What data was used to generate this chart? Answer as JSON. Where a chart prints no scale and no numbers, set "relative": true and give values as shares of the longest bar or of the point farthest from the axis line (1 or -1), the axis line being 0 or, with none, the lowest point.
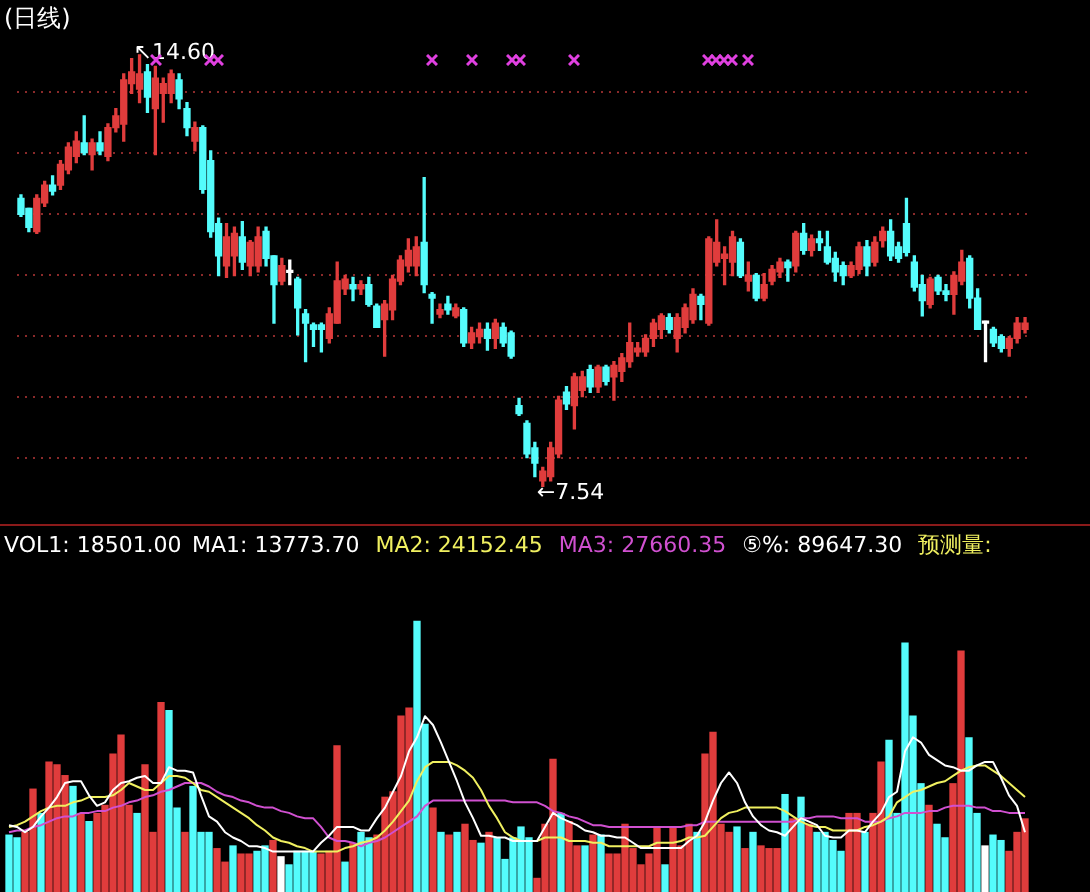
{
  "chart_data": [
    {
      "type": "candlestick",
      "title": "(日线)",
      "grid": "y",
      "categories": [
        null,
        null,
        null,
        null,
        null,
        null,
        null,
        null,
        null,
        null,
        null,
        null,
        null,
        null,
        null,
        null,
        null,
        null,
        null,
        null,
        null,
        null,
        null,
        null,
        null,
        null,
        null,
        null,
        null,
        null,
        null,
        null,
        null,
        null,
        null,
        null,
        null,
        null,
        null,
        null,
        null,
        null,
        null,
        null,
        null,
        null,
        null,
        null,
        null,
        null,
        null,
        null,
        null,
        null,
        null,
        null,
        null,
        null,
        null,
        null,
        null,
        null,
        null,
        null,
        null,
        null,
        null,
        null,
        null,
        null,
        null,
        null,
        null,
        null,
        null,
        null,
        null,
        null,
        null,
        null,
        null,
        null,
        null,
        null,
        null,
        null,
        null,
        null,
        null,
        null,
        null,
        null,
        null,
        null,
        null,
        null,
        null,
        null,
        null,
        null,
        null,
        null,
        null,
        null,
        null,
        null,
        null,
        null,
        null,
        null,
        null,
        null,
        null,
        null,
        null,
        null,
        null,
        null,
        null,
        null,
        null,
        null,
        null,
        null,
        null,
        null,
        null,
        null
      ],
      "ohlc": [
        [
          12.25,
          12.31,
          11.96,
          11.99
        ],
        [
          12.09,
          12.09,
          11.71,
          11.78
        ],
        [
          11.71,
          12.31,
          11.68,
          12.25
        ],
        [
          12.18,
          12.53,
          12.12,
          12.47
        ],
        [
          12.47,
          12.62,
          12.31,
          12.37
        ],
        [
          12.47,
          12.87,
          12.4,
          12.81
        ],
        [
          12.72,
          13.16,
          12.66,
          13.09
        ],
        [
          12.94,
          13.34,
          12.84,
          13.19
        ],
        [
          13.16,
          13.6,
          12.97,
          13.0
        ],
        [
          12.97,
          13.22,
          12.72,
          13.16
        ],
        [
          13.16,
          13.34,
          12.97,
          13.03
        ],
        [
          12.94,
          13.47,
          12.87,
          13.41
        ],
        [
          13.41,
          13.72,
          13.34,
          13.6
        ],
        [
          13.47,
          14.29,
          13.19,
          14.19
        ],
        [
          14.13,
          14.54,
          13.97,
          14.32
        ],
        [
          14.04,
          14.6,
          13.82,
          14.29
        ],
        [
          14.32,
          14.44,
          13.66,
          13.91
        ],
        [
          13.72,
          14.41,
          12.97,
          14.22
        ],
        [
          13.97,
          14.22,
          13.5,
          14.13
        ],
        [
          13.97,
          14.35,
          13.82,
          14.29
        ],
        [
          14.19,
          14.29,
          13.72,
          13.88
        ],
        [
          13.72,
          13.82,
          13.28,
          13.41
        ],
        [
          13.19,
          13.5,
          13.03,
          13.41
        ],
        [
          13.41,
          13.44,
          12.34,
          12.4
        ],
        [
          12.87,
          13.03,
          11.62,
          11.71
        ],
        [
          11.84,
          11.93,
          10.99,
          11.31
        ],
        [
          11.15,
          11.84,
          10.96,
          11.62
        ],
        [
          11.31,
          11.78,
          10.99,
          11.68
        ],
        [
          11.62,
          11.87,
          11.09,
          11.21
        ],
        [
          11.15,
          11.56,
          10.99,
          11.53
        ],
        [
          11.15,
          11.78,
          11.05,
          11.62
        ],
        [
          11.71,
          11.78,
          11.15,
          11.27
        ],
        [
          11.31,
          11.31,
          10.21,
          10.84
        ],
        [
          10.9,
          11.27,
          10.84,
          11.15
        ],
        [
          11.04,
          11.24,
          10.84,
          11.04
        ],
        [
          10.93,
          10.96,
          10.02,
          10.46
        ],
        [
          10.36,
          10.43,
          9.58,
          10.21
        ],
        [
          10.18,
          10.21,
          9.83,
          10.11
        ],
        [
          10.18,
          10.21,
          9.74,
          10.11
        ],
        [
          9.96,
          10.46,
          9.89,
          10.36
        ],
        [
          10.21,
          11.21,
          10.21,
          10.9
        ],
        [
          10.77,
          10.99,
          10.68,
          10.93
        ],
        [
          10.84,
          10.96,
          10.58,
          10.77
        ],
        [
          10.77,
          10.9,
          10.68,
          10.84
        ],
        [
          10.84,
          10.96,
          10.49,
          10.52
        ],
        [
          10.49,
          10.52,
          10.14,
          10.14
        ],
        [
          10.27,
          10.58,
          9.67,
          10.52
        ],
        [
          10.43,
          10.99,
          10.27,
          10.93
        ],
        [
          10.9,
          11.31,
          10.84,
          11.24
        ],
        [
          11.15,
          11.59,
          11.05,
          11.4
        ],
        [
          11.15,
          11.62,
          10.99,
          11.46
        ],
        [
          11.53,
          12.59,
          10.71,
          10.84
        ],
        [
          10.68,
          10.71,
          10.21,
          10.62
        ],
        [
          10.36,
          10.52,
          10.3,
          10.43
        ],
        [
          10.52,
          10.65,
          10.36,
          10.43
        ],
        [
          10.33,
          10.52,
          10.3,
          10.46
        ],
        [
          10.43,
          10.46,
          9.83,
          9.89
        ],
        [
          9.89,
          10.14,
          9.8,
          10.05
        ],
        [
          9.99,
          10.21,
          9.89,
          10.11
        ],
        [
          10.11,
          10.21,
          9.77,
          9.96
        ],
        [
          9.96,
          10.27,
          9.8,
          10.21
        ],
        [
          10.14,
          10.21,
          9.83,
          9.89
        ],
        [
          10.05,
          10.08,
          9.64,
          9.67
        ],
        [
          8.86,
          8.98,
          8.7,
          8.73
        ],
        [
          8.57,
          8.61,
          8.01,
          8.07
        ],
        [
          8.17,
          8.26,
          7.7,
          7.92
        ],
        [
          7.63,
          7.85,
          7.54,
          7.79
        ],
        [
          7.7,
          8.26,
          7.63,
          8.17
        ],
        [
          8.07,
          9.01,
          8.01,
          8.95
        ],
        [
          9.08,
          9.17,
          8.8,
          8.89
        ],
        [
          8.86,
          9.39,
          8.48,
          9.33
        ],
        [
          9.11,
          9.42,
          9.01,
          9.33
        ],
        [
          9.45,
          9.52,
          9.08,
          9.17
        ],
        [
          9.17,
          9.52,
          9.08,
          9.49
        ],
        [
          9.49,
          9.52,
          9.2,
          9.26
        ],
        [
          9.33,
          9.58,
          8.95,
          9.52
        ],
        [
          9.42,
          9.71,
          9.26,
          9.64
        ],
        [
          9.58,
          10.21,
          9.49,
          9.89
        ],
        [
          9.74,
          9.89,
          9.67,
          9.8
        ],
        [
          9.74,
          10.02,
          9.67,
          9.96
        ],
        [
          9.96,
          10.27,
          9.83,
          10.21
        ],
        [
          10.11,
          10.36,
          9.96,
          10.33
        ],
        [
          10.3,
          10.36,
          10.05,
          10.11
        ],
        [
          9.96,
          10.36,
          9.74,
          10.3
        ],
        [
          10.14,
          10.52,
          10.05,
          10.46
        ],
        [
          10.27,
          10.77,
          10.21,
          10.68
        ],
        [
          10.65,
          10.68,
          10.27,
          10.52
        ],
        [
          10.21,
          11.62,
          10.18,
          11.59
        ],
        [
          11.21,
          11.9,
          11.15,
          11.53
        ],
        [
          11.27,
          11.46,
          10.84,
          11.34
        ],
        [
          11.21,
          11.71,
          10.99,
          11.62
        ],
        [
          11.53,
          11.59,
          10.96,
          10.99
        ],
        [
          10.9,
          11.21,
          10.74,
          10.99
        ],
        [
          10.99,
          11.02,
          10.58,
          10.62
        ],
        [
          10.62,
          11.02,
          10.58,
          10.84
        ],
        [
          10.9,
          11.15,
          10.84,
          11.09
        ],
        [
          11.05,
          11.27,
          10.96,
          11.21
        ],
        [
          11.21,
          11.24,
          10.9,
          11.12
        ],
        [
          11.15,
          11.71,
          11.05,
          11.68
        ],
        [
          11.68,
          11.84,
          11.34,
          11.4
        ],
        [
          11.4,
          11.65,
          11.31,
          11.59
        ],
        [
          11.59,
          11.71,
          11.4,
          11.53
        ],
        [
          11.46,
          11.71,
          11.18,
          11.21
        ],
        [
          11.27,
          11.37,
          10.9,
          11.05
        ],
        [
          11.15,
          11.21,
          10.84,
          10.99
        ],
        [
          10.99,
          11.21,
          10.96,
          11.15
        ],
        [
          11.09,
          11.53,
          11.02,
          11.46
        ],
        [
          11.46,
          11.56,
          10.99,
          11.15
        ],
        [
          11.21,
          11.62,
          11.15,
          11.53
        ],
        [
          11.56,
          11.78,
          11.46,
          11.71
        ],
        [
          11.71,
          11.9,
          11.24,
          11.31
        ],
        [
          11.46,
          11.53,
          11.21,
          11.27
        ],
        [
          11.84,
          12.25,
          11.31,
          11.37
        ],
        [
          11.21,
          11.31,
          10.74,
          10.8
        ],
        [
          10.84,
          10.99,
          10.33,
          10.58
        ],
        [
          10.52,
          10.96,
          10.46,
          10.93
        ],
        [
          10.96,
          10.99,
          10.68,
          10.74
        ],
        [
          10.74,
          10.84,
          10.58,
          10.68
        ],
        [
          10.68,
          11.05,
          10.36,
          10.99
        ],
        [
          10.9,
          11.4,
          10.84,
          11.21
        ],
        [
          11.27,
          11.31,
          10.46,
          10.62
        ],
        [
          10.62,
          10.77,
          10.11,
          10.11
        ],
        [
          10.21,
          10.24,
          9.58,
          10.21
        ],
        [
          10.11,
          10.14,
          9.83,
          9.89
        ],
        [
          9.99,
          10.02,
          9.74,
          9.8
        ],
        [
          9.8,
          9.99,
          9.67,
          9.96
        ],
        [
          9.96,
          10.3,
          9.89,
          10.21
        ],
        [
          10.11,
          10.3,
          10.05,
          10.21
        ]
      ],
      "colors": [
        "#54fcfc",
        "#54fcfc",
        "#e03c3c",
        "#e03c3c",
        "#54fcfc",
        "#e03c3c",
        "#e03c3c",
        "#e03c3c",
        "#54fcfc",
        "#e03c3c",
        "#54fcfc",
        "#e03c3c",
        "#e03c3c",
        "#e03c3c",
        "#e03c3c",
        "#e03c3c",
        "#54fcfc",
        "#e03c3c",
        "#e03c3c",
        "#e03c3c",
        "#54fcfc",
        "#54fcfc",
        "#e03c3c",
        "#54fcfc",
        "#54fcfc",
        "#54fcfc",
        "#e03c3c",
        "#e03c3c",
        "#54fcfc",
        "#e03c3c",
        "#e03c3c",
        "#54fcfc",
        "#54fcfc",
        "#e03c3c",
        "#ffffff",
        "#54fcfc",
        "#54fcfc",
        "#54fcfc",
        "#54fcfc",
        "#e03c3c",
        "#e03c3c",
        "#e03c3c",
        "#54fcfc",
        "#e03c3c",
        "#54fcfc",
        "#54fcfc",
        "#e03c3c",
        "#e03c3c",
        "#e03c3c",
        "#e03c3c",
        "#e03c3c",
        "#54fcfc",
        "#54fcfc",
        "#e03c3c",
        "#54fcfc",
        "#e03c3c",
        "#54fcfc",
        "#e03c3c",
        "#e03c3c",
        "#54fcfc",
        "#e03c3c",
        "#54fcfc",
        "#54fcfc",
        "#54fcfc",
        "#54fcfc",
        "#54fcfc",
        "#e03c3c",
        "#e03c3c",
        "#e03c3c",
        "#54fcfc",
        "#e03c3c",
        "#e03c3c",
        "#54fcfc",
        "#e03c3c",
        "#54fcfc",
        "#e03c3c",
        "#e03c3c",
        "#e03c3c",
        "#e03c3c",
        "#e03c3c",
        "#e03c3c",
        "#e03c3c",
        "#54fcfc",
        "#e03c3c",
        "#e03c3c",
        "#e03c3c",
        "#54fcfc",
        "#e03c3c",
        "#e03c3c",
        "#e03c3c",
        "#e03c3c",
        "#54fcfc",
        "#e03c3c",
        "#54fcfc",
        "#e03c3c",
        "#e03c3c",
        "#e03c3c",
        "#54fcfc",
        "#e03c3c",
        "#54fcfc",
        "#e03c3c",
        "#54fcfc",
        "#54fcfc",
        "#54fcfc",
        "#54fcfc",
        "#e03c3c",
        "#e03c3c",
        "#54fcfc",
        "#e03c3c",
        "#e03c3c",
        "#54fcfc",
        "#54fcfc",
        "#54fcfc",
        "#54fcfc",
        "#54fcfc",
        "#e03c3c",
        "#54fcfc",
        "#54fcfc",
        "#e03c3c",
        "#e03c3c",
        "#54fcfc",
        "#54fcfc",
        "#ffffff",
        "#54fcfc",
        "#54fcfc",
        "#e03c3c",
        "#e03c3c",
        "#e03c3c"
      ],
      "yticks": [
        {
          "value": 8,
          "label": null
        },
        {
          "value": 9,
          "label": null
        },
        {
          "value": 10,
          "label": null
        },
        {
          "value": 11,
          "label": null
        },
        {
          "value": 12,
          "label": null
        },
        {
          "value": 13,
          "label": null
        },
        {
          "value": 14,
          "label": null
        }
      ],
      "annotations": [
        "↖14.60",
        "←7.54"
      ]
    },
    {
      "type": "bar",
      "relative": true,
      "categories": [
        null,
        null,
        null,
        null,
        null,
        null,
        null,
        null,
        null,
        null,
        null,
        null,
        null,
        null,
        null,
        null,
        null,
        null,
        null,
        null,
        null,
        null,
        null,
        null,
        null,
        null,
        null,
        null,
        null,
        null,
        null,
        null,
        null,
        null,
        null,
        null,
        null,
        null,
        null,
        null,
        null,
        null,
        null,
        null,
        null,
        null,
        null,
        null,
        null,
        null,
        null,
        null,
        null,
        null,
        null,
        null,
        null,
        null,
        null,
        null,
        null,
        null,
        null,
        null,
        null,
        null,
        null,
        null,
        null,
        null,
        null,
        null,
        null,
        null,
        null,
        null,
        null,
        null,
        null,
        null,
        null,
        null,
        null,
        null,
        null,
        null,
        null,
        null,
        null,
        null,
        null,
        null,
        null,
        null,
        null,
        null,
        null,
        null,
        null,
        null,
        null,
        null,
        null,
        null,
        null,
        null,
        null,
        null,
        null,
        null,
        null,
        null,
        null,
        null,
        null,
        null,
        null,
        null,
        null,
        null,
        null,
        null,
        null,
        null,
        null,
        null,
        null,
        null
      ],
      "series": [
        {
          "name": "VOL1: 18501.00",
          "colors": [
            "#54fcfc",
            "#54fcfc",
            "#e03c3c",
            "#e03c3c",
            "#54fcfc",
            "#e03c3c",
            "#e03c3c",
            "#e03c3c",
            "#54fcfc",
            "#e03c3c",
            "#54fcfc",
            "#e03c3c",
            "#e03c3c",
            "#e03c3c",
            "#e03c3c",
            "#e03c3c",
            "#54fcfc",
            "#e03c3c",
            "#e03c3c",
            "#e03c3c",
            "#54fcfc",
            "#54fcfc",
            "#e03c3c",
            "#54fcfc",
            "#54fcfc",
            "#54fcfc",
            "#e03c3c",
            "#e03c3c",
            "#54fcfc",
            "#e03c3c",
            "#e03c3c",
            "#54fcfc",
            "#54fcfc",
            "#e03c3c",
            "#ffffff",
            "#54fcfc",
            "#54fcfc",
            "#54fcfc",
            "#54fcfc",
            "#e03c3c",
            "#e03c3c",
            "#e03c3c",
            "#54fcfc",
            "#e03c3c",
            "#54fcfc",
            "#54fcfc",
            "#e03c3c",
            "#e03c3c",
            "#e03c3c",
            "#e03c3c",
            "#e03c3c",
            "#54fcfc",
            "#54fcfc",
            "#e03c3c",
            "#54fcfc",
            "#e03c3c",
            "#54fcfc",
            "#e03c3c",
            "#e03c3c",
            "#54fcfc",
            "#e03c3c",
            "#54fcfc",
            "#54fcfc",
            "#54fcfc",
            "#54fcfc",
            "#54fcfc",
            "#e03c3c",
            "#e03c3c",
            "#e03c3c",
            "#54fcfc",
            "#e03c3c",
            "#e03c3c",
            "#54fcfc",
            "#e03c3c",
            "#54fcfc",
            "#e03c3c",
            "#e03c3c",
            "#e03c3c",
            "#e03c3c",
            "#e03c3c",
            "#e03c3c",
            "#e03c3c",
            "#54fcfc",
            "#e03c3c",
            "#e03c3c",
            "#e03c3c",
            "#54fcfc",
            "#e03c3c",
            "#e03c3c",
            "#e03c3c",
            "#e03c3c",
            "#54fcfc",
            "#e03c3c",
            "#54fcfc",
            "#e03c3c",
            "#e03c3c",
            "#e03c3c",
            "#54fcfc",
            "#e03c3c",
            "#54fcfc",
            "#e03c3c",
            "#54fcfc",
            "#54fcfc",
            "#54fcfc",
            "#54fcfc",
            "#e03c3c",
            "#e03c3c",
            "#54fcfc",
            "#e03c3c",
            "#e03c3c",
            "#54fcfc",
            "#54fcfc",
            "#54fcfc",
            "#54fcfc",
            "#54fcfc",
            "#e03c3c",
            "#54fcfc",
            "#54fcfc",
            "#e03c3c",
            "#e03c3c",
            "#54fcfc",
            "#54fcfc",
            "#ffffff",
            "#54fcfc",
            "#54fcfc",
            "#e03c3c",
            "#e03c3c",
            "#e03c3c"
          ],
          "values": [
            0.21,
            0.2,
            0.22,
            0.38,
            0.29,
            0.48,
            0.47,
            0.43,
            0.39,
            0.29,
            0.26,
            0.29,
            0.32,
            0.51,
            0.58,
            0.32,
            0.29,
            0.47,
            0.22,
            0.7,
            0.67,
            0.31,
            0.22,
            0.39,
            0.22,
            0.22,
            0.16,
            0.11,
            0.17,
            0.14,
            0.14,
            0.15,
            0.17,
            0.19,
            0.13,
            0.1,
            0.15,
            0.15,
            0.15,
            0.14,
            0.15,
            0.54,
            0.11,
            0.18,
            0.22,
            0.2,
            0.21,
            0.35,
            0.37,
            0.65,
            0.68,
            1.0,
            0.62,
            0.31,
            0.22,
            0.21,
            0.22,
            0.25,
            0.19,
            0.18,
            0.22,
            0.2,
            0.12,
            0.2,
            0.24,
            0.2,
            0.05,
            0.25,
            0.49,
            0.29,
            0.26,
            0.17,
            0.17,
            0.21,
            0.21,
            0.14,
            0.14,
            0.25,
            0.16,
            0.1,
            0.14,
            0.24,
            0.1,
            0.24,
            0.17,
            0.25,
            0.22,
            0.51,
            0.59,
            0.25,
            0.22,
            0.24,
            0.16,
            0.22,
            0.17,
            0.16,
            0.16,
            0.36,
            0.27,
            0.35,
            0.25,
            0.22,
            0.22,
            0.19,
            0.15,
            0.29,
            0.29,
            0.22,
            0.29,
            0.48,
            0.56,
            0.29,
            0.92,
            0.65,
            0.4,
            0.32,
            0.25,
            0.2,
            0.4,
            0.89,
            0.57,
            0.29,
            0.17,
            0.21,
            0.19,
            0.15,
            0.22,
            0.27
          ]
        }
      ]
    },
    {
      "type": "line",
      "relative": true,
      "categories": [
        null,
        null,
        null,
        null,
        null,
        null,
        null,
        null,
        null,
        null,
        null,
        null,
        null,
        null,
        null,
        null,
        null,
        null,
        null,
        null,
        null,
        null,
        null,
        null,
        null,
        null,
        null,
        null,
        null,
        null,
        null,
        null,
        null,
        null,
        null,
        null,
        null,
        null,
        null,
        null,
        null,
        null,
        null,
        null,
        null,
        null,
        null,
        null,
        null,
        null,
        null,
        null,
        null,
        null,
        null,
        null,
        null,
        null,
        null,
        null,
        null,
        null,
        null,
        null,
        null,
        null,
        null,
        null,
        null,
        null,
        null,
        null,
        null,
        null,
        null,
        null,
        null,
        null,
        null,
        null,
        null,
        null,
        null,
        null,
        null,
        null,
        null,
        null,
        null,
        null,
        null,
        null,
        null,
        null,
        null,
        null,
        null,
        null,
        null,
        null,
        null,
        null,
        null,
        null,
        null,
        null,
        null,
        null,
        null,
        null,
        null,
        null,
        null,
        null,
        null,
        null,
        null,
        null,
        null,
        null,
        null,
        null,
        null,
        null,
        null,
        null,
        null,
        null
      ],
      "series": [
        {
          "name": "MA1: 13773.70",
          "color": "#ffffff",
          "values": [
            0.38,
            0.37,
            0.34,
            0.37,
            0.43,
            0.48,
            0.54,
            0.62,
            0.63,
            0.63,
            0.55,
            0.49,
            0.51,
            0.58,
            0.62,
            0.63,
            0.65,
            0.66,
            0.62,
            0.62,
            0.71,
            0.69,
            0.69,
            0.68,
            0.55,
            0.43,
            0.4,
            0.34,
            0.31,
            0.29,
            0.26,
            0.26,
            0.25,
            0.23,
            0.23,
            0.23,
            0.23,
            0.23,
            0.23,
            0.28,
            0.32,
            0.37,
            0.37,
            0.37,
            0.35,
            0.35,
            0.42,
            0.48,
            0.57,
            0.66,
            0.8,
            0.88,
            1.0,
            0.95,
            0.85,
            0.74,
            0.63,
            0.51,
            0.42,
            0.32,
            0.32,
            0.31,
            0.31,
            0.29,
            0.29,
            0.29,
            0.29,
            0.37,
            0.45,
            0.42,
            0.4,
            0.38,
            0.35,
            0.34,
            0.32,
            0.32,
            0.31,
            0.31,
            0.28,
            0.25,
            0.25,
            0.25,
            0.25,
            0.25,
            0.25,
            0.29,
            0.32,
            0.4,
            0.52,
            0.62,
            0.68,
            0.62,
            0.51,
            0.43,
            0.38,
            0.35,
            0.34,
            0.32,
            0.37,
            0.42,
            0.4,
            0.38,
            0.32,
            0.31,
            0.31,
            0.35,
            0.35,
            0.34,
            0.4,
            0.45,
            0.54,
            0.57,
            0.8,
            0.88,
            0.85,
            0.78,
            0.75,
            0.72,
            0.71,
            0.69,
            0.69,
            0.72,
            0.74,
            0.74,
            0.65,
            0.55,
            0.49,
            0.34
          ]
        },
        {
          "name": "MA2: 24152.45",
          "color": "#f0f060",
          "values": [
            0.37,
            0.38,
            0.4,
            0.43,
            0.46,
            0.48,
            0.49,
            0.49,
            0.51,
            0.52,
            0.54,
            0.54,
            0.54,
            0.55,
            0.58,
            0.62,
            0.6,
            0.58,
            0.58,
            0.62,
            0.66,
            0.66,
            0.65,
            0.62,
            0.58,
            0.57,
            0.54,
            0.51,
            0.48,
            0.45,
            0.42,
            0.38,
            0.35,
            0.31,
            0.29,
            0.28,
            0.26,
            0.25,
            0.23,
            0.23,
            0.23,
            0.23,
            0.25,
            0.26,
            0.28,
            0.29,
            0.31,
            0.35,
            0.4,
            0.46,
            0.52,
            0.63,
            0.71,
            0.74,
            0.74,
            0.74,
            0.72,
            0.69,
            0.65,
            0.58,
            0.49,
            0.42,
            0.34,
            0.31,
            0.29,
            0.29,
            0.29,
            0.31,
            0.31,
            0.31,
            0.29,
            0.29,
            0.29,
            0.28,
            0.28,
            0.26,
            0.26,
            0.26,
            0.26,
            0.26,
            0.26,
            0.28,
            0.28,
            0.28,
            0.29,
            0.31,
            0.31,
            0.32,
            0.37,
            0.42,
            0.45,
            0.46,
            0.48,
            0.48,
            0.48,
            0.48,
            0.48,
            0.46,
            0.43,
            0.4,
            0.38,
            0.37,
            0.37,
            0.35,
            0.35,
            0.35,
            0.35,
            0.37,
            0.38,
            0.4,
            0.43,
            0.51,
            0.54,
            0.57,
            0.58,
            0.6,
            0.62,
            0.63,
            0.66,
            0.69,
            0.71,
            0.72,
            0.72,
            0.69,
            0.66,
            0.62,
            0.58,
            0.54
          ]
        },
        {
          "name": "MA3: 27660.35",
          "color": "#d050d0",
          "values": [
            0.34,
            0.35,
            0.35,
            0.37,
            0.38,
            0.4,
            0.42,
            0.43,
            0.43,
            0.45,
            0.45,
            0.46,
            0.46,
            0.48,
            0.49,
            0.51,
            0.52,
            0.54,
            0.55,
            0.57,
            0.58,
            0.6,
            0.62,
            0.62,
            0.62,
            0.6,
            0.57,
            0.55,
            0.54,
            0.52,
            0.51,
            0.49,
            0.48,
            0.48,
            0.46,
            0.45,
            0.43,
            0.42,
            0.42,
            0.37,
            0.31,
            0.29,
            0.29,
            0.28,
            0.26,
            0.28,
            0.29,
            0.31,
            0.34,
            0.37,
            0.4,
            0.43,
            0.49,
            0.52,
            0.52,
            0.52,
            0.52,
            0.52,
            0.52,
            0.52,
            0.52,
            0.52,
            0.52,
            0.51,
            0.51,
            0.51,
            0.51,
            0.49,
            0.46,
            0.45,
            0.43,
            0.42,
            0.4,
            0.38,
            0.38,
            0.37,
            0.37,
            0.37,
            0.37,
            0.37,
            0.37,
            0.37,
            0.37,
            0.37,
            0.37,
            0.38,
            0.38,
            0.4,
            0.4,
            0.4,
            0.4,
            0.4,
            0.4,
            0.4,
            0.4,
            0.4,
            0.4,
            0.4,
            0.4,
            0.42,
            0.42,
            0.43,
            0.43,
            0.43,
            0.42,
            0.42,
            0.42,
            0.4,
            0.4,
            0.4,
            0.42,
            0.43,
            0.45,
            0.45,
            0.45,
            0.46,
            0.46,
            0.48,
            0.49,
            0.49,
            0.49,
            0.48,
            0.48,
            0.46,
            0.46,
            0.45,
            0.45,
            0.45
          ]
        }
      ],
      "annotations": [
        "⑤%: 89647.30",
        "预测量:"
      ]
    }
  ]
}
